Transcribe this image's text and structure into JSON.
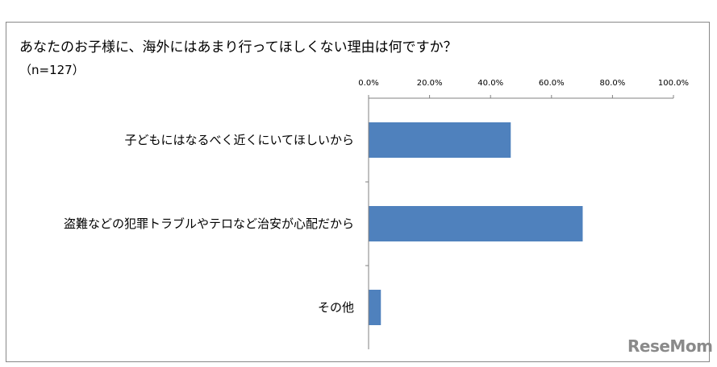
{
  "title": "あなたのお子様に、海外にはあまり行ってほしくない理由は何ですか？",
  "subtitle": "（n=127）",
  "logo": "ReseMom",
  "colors": {
    "bar": "#4f81bd",
    "axis": "#808080",
    "frame": "#888888",
    "logo": "#8a8a8a"
  },
  "chart_data": {
    "type": "bar",
    "orientation": "horizontal",
    "categories": [
      "子どもにはなるべく近くにいてほしいから",
      "盗難などの犯罪トラブルやテロなど治安が心配だから",
      "その他"
    ],
    "values": [
      46.5,
      70.1,
      3.9
    ],
    "xlim": [
      0,
      100
    ],
    "ticks": [
      0,
      20,
      40,
      60,
      80,
      100
    ],
    "tick_labels": [
      "0.0%",
      "20.0%",
      "40.0%",
      "60.0%",
      "80.0%",
      "100.0%"
    ],
    "axis_position": "top",
    "grid": false,
    "legend": "none"
  }
}
